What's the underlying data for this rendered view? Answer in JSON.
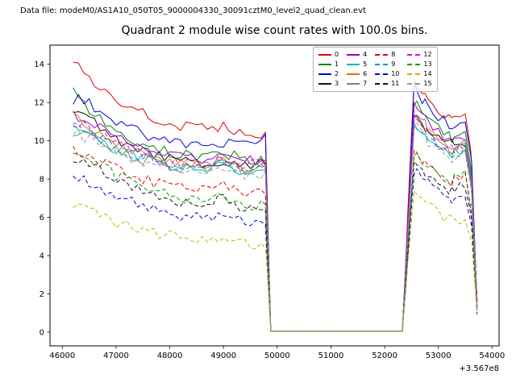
{
  "header": {
    "data_file_label": "Data file: modeM0/AS1A10_050T05_9000004330_30091cztM0_level2_quad_clean.evt"
  },
  "chart_data": {
    "type": "line",
    "title": "Quadrant 2 module wise count rates with 100.0s bins.",
    "xlabel": "",
    "ylabel": "",
    "xlim": [
      45770,
      54130
    ],
    "ylim": [
      -0.72,
      15.0
    ],
    "x_ticks": [
      46000,
      47000,
      48000,
      49000,
      50000,
      51000,
      52000,
      53000,
      54000
    ],
    "y_ticks": [
      0,
      2,
      4,
      6,
      8,
      10,
      12,
      14
    ],
    "x_offset_label": "+3.567e8",
    "legend_position": "upper center-right",
    "grid": false,
    "x": [
      46200,
      46500,
      47000,
      47500,
      48000,
      48500,
      49000,
      49400,
      49700,
      49780,
      49880,
      52330,
      52430,
      52550,
      52750,
      53000,
      53250,
      53500,
      53620,
      53720
    ],
    "series": [
      {
        "name": "0",
        "color": "#e10000",
        "style": "solid",
        "y": [
          14.3,
          13.2,
          12.1,
          11.5,
          10.9,
          10.6,
          10.8,
          10.4,
          10.3,
          10.3,
          0.05,
          0.05,
          6.0,
          13.0,
          12.2,
          11.6,
          11.2,
          11.5,
          9.0,
          1.6
        ]
      },
      {
        "name": "1",
        "color": "#008000",
        "style": "solid",
        "y": [
          12.5,
          11.6,
          10.4,
          9.8,
          9.4,
          9.2,
          9.4,
          9.0,
          8.9,
          8.9,
          0.05,
          0.05,
          5.5,
          12.0,
          11.4,
          10.6,
          10.1,
          10.4,
          8.2,
          1.5
        ]
      },
      {
        "name": "2",
        "color": "#0000dc",
        "style": "solid",
        "y": [
          12.2,
          12.0,
          11.0,
          10.4,
          9.9,
          9.7,
          9.9,
          10.0,
          10.2,
          10.2,
          0.05,
          0.05,
          5.8,
          12.8,
          12.0,
          11.3,
          10.8,
          11.2,
          8.8,
          1.6
        ]
      },
      {
        "name": "3",
        "color": "#141414",
        "style": "solid",
        "y": [
          11.7,
          11.2,
          10.1,
          9.5,
          9.0,
          8.8,
          9.0,
          8.7,
          8.8,
          8.8,
          0.05,
          0.05,
          5.2,
          11.5,
          10.8,
          10.2,
          9.8,
          10.0,
          7.9,
          1.4
        ]
      },
      {
        "name": "4",
        "color": "#9a00c8",
        "style": "solid",
        "y": [
          11.3,
          11.0,
          10.2,
          9.6,
          9.2,
          9.0,
          9.3,
          8.9,
          9.0,
          9.0,
          0.05,
          0.05,
          5.4,
          12.0,
          11.2,
          10.5,
          10.0,
          10.3,
          8.0,
          1.5
        ]
      },
      {
        "name": "5",
        "color": "#00b4be",
        "style": "solid",
        "y": [
          10.7,
          10.3,
          9.6,
          9.1,
          8.7,
          8.5,
          8.7,
          8.4,
          8.5,
          8.5,
          0.05,
          0.05,
          5.0,
          11.0,
          10.4,
          9.8,
          9.4,
          9.6,
          7.6,
          1.4
        ]
      },
      {
        "name": "6",
        "color": "#d27d00",
        "style": "solid",
        "y": [
          11.2,
          10.7,
          9.9,
          9.3,
          8.9,
          8.7,
          8.9,
          8.6,
          8.8,
          8.8,
          0.05,
          0.05,
          5.1,
          11.3,
          10.6,
          10.0,
          9.6,
          9.8,
          7.7,
          1.4
        ]
      },
      {
        "name": "7",
        "color": "#7f7f7f",
        "style": "solid",
        "y": [
          10.5,
          10.2,
          9.5,
          9.0,
          8.7,
          8.5,
          8.8,
          8.5,
          8.7,
          8.7,
          0.05,
          0.05,
          5.3,
          11.6,
          10.9,
          10.2,
          9.7,
          10.0,
          7.8,
          1.4
        ]
      },
      {
        "name": "8",
        "color": "#e10000",
        "style": "dashed",
        "y": [
          9.5,
          9.2,
          8.5,
          8.0,
          7.6,
          7.4,
          7.6,
          7.3,
          7.2,
          7.2,
          0.05,
          0.05,
          4.3,
          9.3,
          8.8,
          8.3,
          7.9,
          8.1,
          6.4,
          1.2
        ]
      },
      {
        "name": "9",
        "color": "#00a0a0",
        "style": "dashed",
        "y": [
          10.9,
          10.4,
          9.7,
          9.2,
          8.8,
          8.6,
          8.8,
          8.5,
          8.6,
          8.6,
          0.05,
          0.05,
          5.0,
          11.0,
          10.3,
          9.7,
          9.3,
          9.5,
          7.5,
          1.4
        ]
      },
      {
        "name": "10",
        "color": "#0000dc",
        "style": "dashed",
        "y": [
          8.1,
          7.8,
          7.1,
          6.6,
          6.2,
          6.0,
          6.2,
          5.8,
          5.6,
          5.6,
          0.05,
          0.05,
          3.8,
          8.4,
          7.9,
          7.4,
          7.0,
          7.2,
          5.7,
          1.1
        ]
      },
      {
        "name": "11",
        "color": "#141414",
        "style": "dashed",
        "y": [
          9.0,
          8.7,
          7.9,
          7.3,
          6.9,
          6.7,
          6.9,
          6.5,
          6.3,
          6.3,
          0.05,
          0.05,
          4.1,
          8.8,
          8.3,
          7.8,
          7.4,
          7.6,
          6.0,
          1.2
        ]
      },
      {
        "name": "12",
        "color": "#dc00dc",
        "style": "dashed",
        "y": [
          11.0,
          10.6,
          9.8,
          9.3,
          8.9,
          8.7,
          9.0,
          8.7,
          8.8,
          8.8,
          0.05,
          0.05,
          5.2,
          11.2,
          10.5,
          9.9,
          9.5,
          9.7,
          7.6,
          1.4
        ]
      },
      {
        "name": "13",
        "color": "#00a000",
        "style": "dashed",
        "y": [
          9.3,
          9.0,
          8.2,
          7.6,
          7.1,
          6.9,
          7.1,
          6.7,
          6.6,
          6.6,
          0.05,
          0.05,
          4.4,
          9.5,
          8.9,
          8.4,
          8.0,
          8.2,
          6.5,
          1.2
        ]
      },
      {
        "name": "14",
        "color": "#bcbc00",
        "style": "dashed",
        "y": [
          6.6,
          6.3,
          5.7,
          5.3,
          5.0,
          4.8,
          5.0,
          4.7,
          4.6,
          4.6,
          0.05,
          0.05,
          3.4,
          7.5,
          6.8,
          6.2,
          5.8,
          5.9,
          4.7,
          1.0
        ]
      },
      {
        "name": "15",
        "color": "#9a9a9a",
        "style": "dashed",
        "y": [
          10.4,
          10.0,
          9.3,
          8.8,
          8.5,
          8.3,
          8.5,
          8.2,
          8.3,
          8.3,
          0.05,
          0.05,
          4.9,
          10.8,
          10.1,
          9.5,
          9.1,
          9.3,
          7.3,
          1.3
        ]
      }
    ]
  }
}
